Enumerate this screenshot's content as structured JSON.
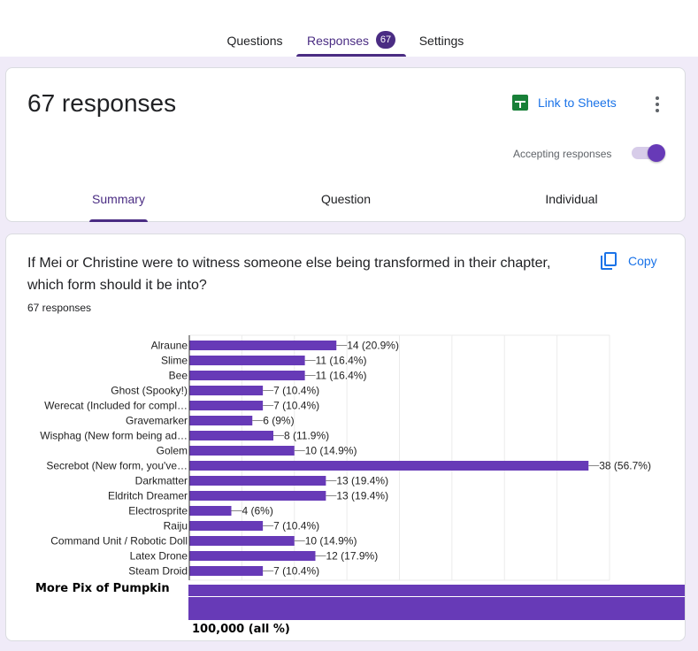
{
  "top_tabs": [
    {
      "label": "Questions",
      "active": false
    },
    {
      "label": "Responses",
      "active": true,
      "badge": "67"
    },
    {
      "label": "Settings",
      "active": false
    }
  ],
  "summary_card": {
    "response_count": "67 responses",
    "link_sheets_label": "Link to Sheets",
    "accepting_label": "Accepting responses",
    "accepting_on": true,
    "sub_tabs": [
      {
        "label": "Summary",
        "active": true
      },
      {
        "label": "Question",
        "active": false
      },
      {
        "label": "Individual",
        "active": false
      }
    ]
  },
  "question_card": {
    "title": "If Mei or Christine were to witness someone else being transformed in their chapter, which form should it be into?",
    "response_count": "67 responses",
    "copy_label": "Copy"
  },
  "colors": {
    "accent": "#4a2c83",
    "bar": "#673ab7",
    "link": "#1a73e8",
    "background": "#f0ebf8"
  },
  "chart_data": {
    "type": "bar",
    "orientation": "horizontal",
    "title": "",
    "xlabel": "",
    "ylabel": "",
    "xlim": [
      0,
      40
    ],
    "grid": true,
    "categories": [
      "Alraune",
      "Slime",
      "Bee",
      "Ghost (Spooky!)",
      "Werecat (Included for compl…",
      "Gravemarker",
      "Wisphag (New form being ad…",
      "Golem",
      "Secrebot (New form, you've…",
      "Darkmatter",
      "Eldritch Dreamer",
      "Electrosprite",
      "Raiju",
      "Command Unit / Robotic Doll",
      "Latex Drone",
      "Steam Droid"
    ],
    "values": [
      14,
      11,
      11,
      7,
      7,
      6,
      8,
      10,
      38,
      13,
      13,
      4,
      7,
      10,
      12,
      7
    ],
    "data_labels": [
      "14 (20.9%)",
      "11 (16.4%)",
      "11 (16.4%)",
      "7 (10.4%)",
      "7 (10.4%)",
      "6 (9%)",
      "8 (11.9%)",
      "10 (14.9%)",
      "38 (56.7%)",
      "13 (19.4%)",
      "13 (19.4%)",
      "4 (6%)",
      "7 (10.4%)",
      "10 (14.9%)",
      "12 (17.9%)",
      "7 (10.4%)"
    ]
  },
  "overlay": {
    "label": "More Pix of Pumpkin",
    "value_label": "100,000 (all %)"
  }
}
